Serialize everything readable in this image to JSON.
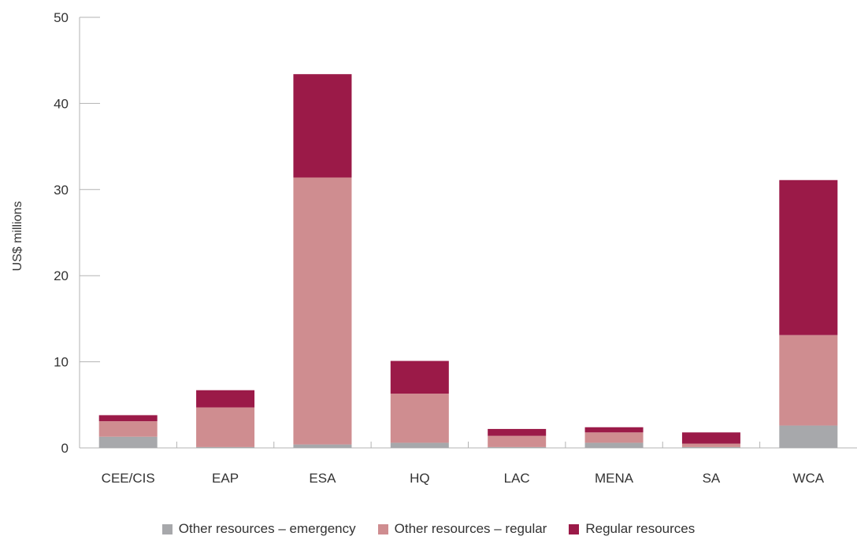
{
  "chart_data": {
    "type": "bar",
    "stacked": true,
    "ylabel": "US$ millions",
    "ylim": [
      0,
      50
    ],
    "yticks": [
      0,
      10,
      20,
      30,
      40,
      50
    ],
    "categories": [
      "CEE/CIS",
      "EAP",
      "ESA",
      "HQ",
      "LAC",
      "MENA",
      "SA",
      "WCA"
    ],
    "series": [
      {
        "name": "Other resources – emergency",
        "color": "#a7a8ab",
        "values": [
          1.3,
          0.1,
          0.4,
          0.6,
          0.1,
          0.6,
          0.1,
          2.6
        ]
      },
      {
        "name": "Other resources – regular",
        "color": "#cf8d90",
        "values": [
          1.8,
          4.6,
          31.0,
          5.7,
          1.3,
          1.2,
          0.4,
          10.5
        ]
      },
      {
        "name": "Regular resources",
        "color": "#9b1a48",
        "values": [
          0.7,
          2.0,
          12.0,
          3.8,
          0.8,
          0.6,
          1.3,
          18.0
        ]
      }
    ],
    "grid": false,
    "legend_position": "bottom"
  }
}
